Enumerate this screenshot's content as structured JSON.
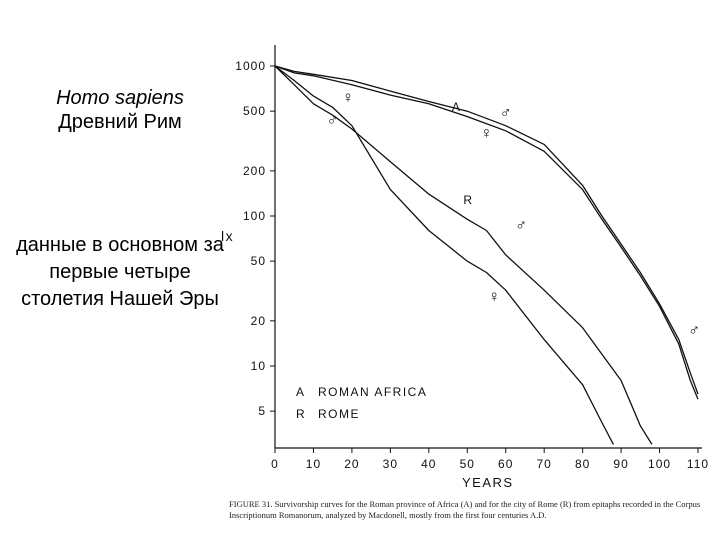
{
  "left_panel": {
    "species": "Homo sapiens",
    "title": "Древний Рим",
    "note": "данные в основном за первые четыре столетия Нашей Эры"
  },
  "chart_data": {
    "type": "line",
    "scale": "log-y",
    "xlabel": "YEARS",
    "ylabel": "lx",
    "xlim": [
      0,
      112
    ],
    "ylim": [
      3,
      1000
    ],
    "x_ticks": [
      "0",
      "10",
      "20",
      "30",
      "40",
      "50",
      "60",
      "70",
      "80",
      "90",
      "100",
      "110"
    ],
    "y_ticks": [
      {
        "value": 1000,
        "label": "1000"
      },
      {
        "value": 500,
        "label": "500"
      },
      {
        "value": 200,
        "label": "200"
      },
      {
        "value": 100,
        "label": "100"
      },
      {
        "value": 50,
        "label": "50"
      },
      {
        "value": 20,
        "label": "20"
      },
      {
        "value": 10,
        "label": "10"
      },
      {
        "value": 5,
        "label": "5"
      }
    ],
    "legend": [
      {
        "key": "A",
        "text": "ROMAN AFRICA"
      },
      {
        "key": "R",
        "text": "ROME"
      }
    ],
    "series": [
      {
        "name": "A ♂",
        "x": [
          0,
          5,
          10,
          20,
          30,
          40,
          50,
          60,
          70,
          80,
          85,
          90,
          95,
          100,
          105,
          108,
          110
        ],
        "y": [
          1000,
          920,
          880,
          800,
          680,
          580,
          500,
          400,
          300,
          160,
          100,
          65,
          42,
          26,
          15,
          9,
          6.5
        ]
      },
      {
        "name": "A ♀",
        "x": [
          0,
          5,
          10,
          20,
          30,
          40,
          50,
          60,
          70,
          80,
          85,
          90,
          95,
          100,
          105,
          108,
          110
        ],
        "y": [
          1000,
          900,
          860,
          750,
          640,
          560,
          460,
          370,
          270,
          150,
          95,
          62,
          40,
          25,
          14,
          8,
          6
        ]
      },
      {
        "name": "R ♂",
        "x": [
          0,
          5,
          10,
          15,
          20,
          30,
          40,
          50,
          55,
          60,
          70,
          80,
          90,
          95,
          98
        ],
        "y": [
          1000,
          750,
          560,
          470,
          380,
          230,
          140,
          95,
          80,
          55,
          32,
          18,
          8,
          4,
          3
        ]
      },
      {
        "name": "R ♀",
        "x": [
          0,
          5,
          10,
          15,
          20,
          30,
          40,
          50,
          55,
          60,
          70,
          80,
          85,
          88
        ],
        "y": [
          1000,
          800,
          630,
          530,
          400,
          150,
          80,
          50,
          42,
          32,
          15,
          7.5,
          4.2,
          3
        ]
      }
    ],
    "annotations": [
      {
        "text": "♀",
        "x": 19,
        "y": 570
      },
      {
        "text": "♂",
        "x": 15,
        "y": 400
      },
      {
        "text": "A",
        "x": 46,
        "y": 500
      },
      {
        "text": "♂",
        "x": 60,
        "y": 450
      },
      {
        "text": "♀",
        "x": 55,
        "y": 330
      },
      {
        "text": "R",
        "x": 49,
        "y": 120
      },
      {
        "text": "♂",
        "x": 64,
        "y": 80
      },
      {
        "text": "♀",
        "x": 57,
        "y": 27
      },
      {
        "text": "♂",
        "x": 109,
        "y": 16
      }
    ]
  },
  "caption": "FIGURE 31. Survivorship curves for the Roman province of Africa (A) and for the city of Rome (R) from epitaphs recorded in the Corpus Inscriptionum Romanorum, analyzed by Macdonell, mostly from the first four centuries A.D."
}
